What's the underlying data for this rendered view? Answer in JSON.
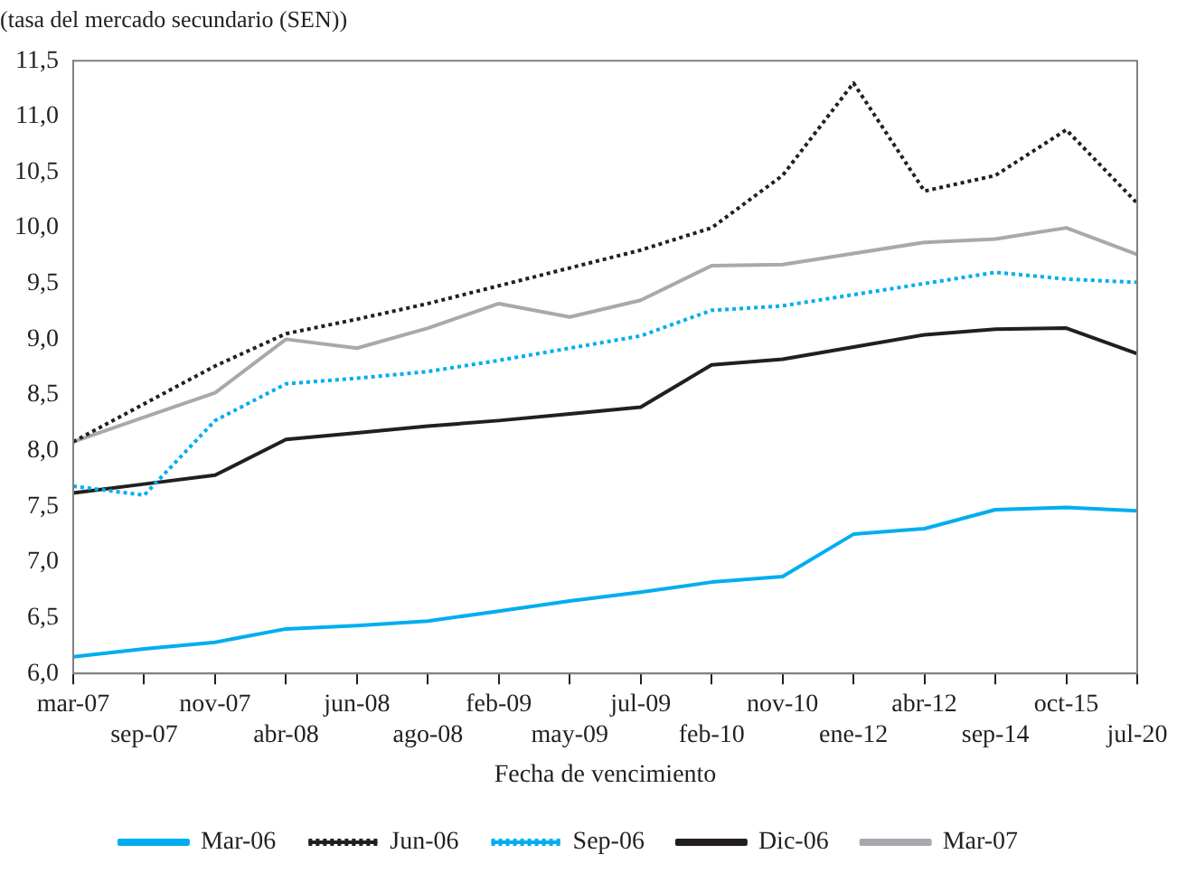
{
  "chart_data": {
    "type": "line",
    "title": "(tasa del mercado secundario (SEN))",
    "xlabel": "Fecha de vencimiento",
    "categories": [
      "mar-07",
      "sep-07",
      "nov-07",
      "abr-08",
      "jun-08",
      "ago-08",
      "feb-09",
      "may-09",
      "jul-09",
      "feb-10",
      "nov-10",
      "ene-12",
      "abr-12",
      "sep-14",
      "oct-15",
      "jul-20"
    ],
    "series": [
      {
        "name": "Mar-06",
        "color": "#00aeef",
        "line_style": "solid",
        "values": [
          6.15,
          6.22,
          6.28,
          6.4,
          6.43,
          6.47,
          6.56,
          6.65,
          6.73,
          6.82,
          6.87,
          7.25,
          7.3,
          7.47,
          7.49,
          7.46
        ]
      },
      {
        "name": "Jun-06",
        "color": "#231f20",
        "line_style": "dotted",
        "values": [
          8.08,
          8.42,
          8.76,
          9.05,
          9.18,
          9.32,
          9.48,
          9.64,
          9.8,
          10.0,
          10.47,
          11.3,
          10.33,
          10.47,
          10.88,
          10.22
        ]
      },
      {
        "name": "Sep-06",
        "color": "#00aeef",
        "line_style": "dotted",
        "values": [
          7.68,
          7.6,
          8.27,
          8.6,
          8.65,
          8.71,
          8.81,
          8.92,
          9.03,
          9.26,
          9.3,
          9.4,
          9.5,
          9.6,
          9.54,
          9.51
        ]
      },
      {
        "name": "Dic-06",
        "color": "#231f20",
        "line_style": "solid",
        "values": [
          7.62,
          7.7,
          7.78,
          8.1,
          8.16,
          8.22,
          8.27,
          8.33,
          8.39,
          8.77,
          8.82,
          8.93,
          9.04,
          9.09,
          9.1,
          8.87
        ]
      },
      {
        "name": "Mar-07",
        "color": "#a7a9ac",
        "line_style": "solid",
        "values": [
          8.08,
          8.3,
          8.52,
          9.0,
          8.92,
          9.1,
          9.32,
          9.2,
          9.35,
          9.66,
          9.67,
          9.77,
          9.87,
          9.9,
          10.0,
          9.76
        ]
      }
    ],
    "ylim": [
      6,
      11.5
    ],
    "yticks": [
      {
        "value": 6,
        "label": "6,0"
      },
      {
        "value": 6.5,
        "label": "6,5"
      },
      {
        "value": 7,
        "label": "7,0"
      },
      {
        "value": 7.5,
        "label": "7,5"
      },
      {
        "value": 8,
        "label": "8,0"
      },
      {
        "value": 8.5,
        "label": "8,5"
      },
      {
        "value": 9,
        "label": "9,0"
      },
      {
        "value": 9.5,
        "label": "9,5"
      },
      {
        "value": 10,
        "label": "10,0"
      },
      {
        "value": 10.5,
        "label": "10,5"
      },
      {
        "value": 11,
        "label": "11,0"
      },
      {
        "value": 11.5,
        "label": "11,5"
      }
    ],
    "grid": false,
    "legend": "bottom",
    "marker": "none"
  }
}
